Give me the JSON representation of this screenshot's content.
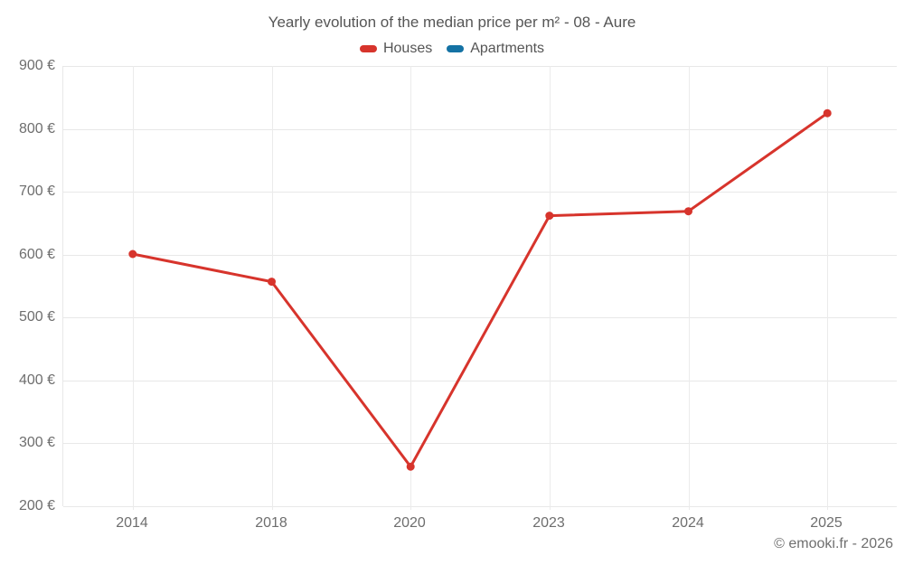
{
  "chart": {
    "title": "Yearly evolution of the median price per m² - 08 - Aure",
    "legend": [
      {
        "label": "Houses",
        "color": "#d7342c"
      },
      {
        "label": "Apartments",
        "color": "#1472a4"
      }
    ],
    "footer": "© emooki.fr - 2026"
  },
  "chart_data": {
    "type": "line",
    "title": "Yearly evolution of the median price per m² - 08 - Aure",
    "categories": [
      "2014",
      "2018",
      "2020",
      "2023",
      "2024",
      "2025"
    ],
    "series": [
      {
        "name": "Houses",
        "color": "#d7342c",
        "values": [
          601,
          557,
          263,
          662,
          669,
          825
        ]
      },
      {
        "name": "Apartments",
        "color": "#1472a4",
        "values": []
      }
    ],
    "ylim": [
      200,
      900
    ],
    "ytick_step": 100,
    "yticks": [
      "900 €",
      "800 €",
      "700 €",
      "600 €",
      "500 €",
      "400 €",
      "300 €",
      "200 €"
    ],
    "ytick_suffix": " €",
    "xlabel": "",
    "ylabel": "",
    "grid": true,
    "legend_position": "top",
    "point_radius": 4.5,
    "line_width": 3
  }
}
